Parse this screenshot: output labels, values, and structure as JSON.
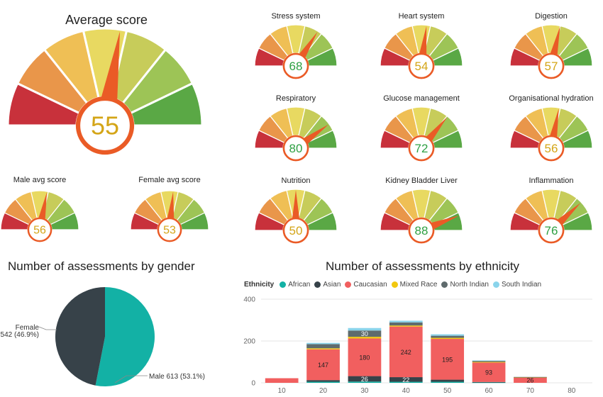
{
  "colors": {
    "red": "#c8313b",
    "orange": "#e9964a",
    "yellow_orange": "#efbf55",
    "yellow": "#e8d961",
    "yellow_green": "#c7cc5a",
    "light_green": "#9dc456",
    "green": "#5aa845",
    "needle": "#ea5b26",
    "score_yellow": "#d4a517",
    "score_green": "#2ea043"
  },
  "main_gauge": {
    "title": "Average score",
    "value": "55",
    "value_color": "#d4a517"
  },
  "small_gauges": [
    {
      "title": "Male avg score",
      "value": "56",
      "value_color": "#d4a517"
    },
    {
      "title": "Female avg score",
      "value": "53",
      "value_color": "#d4a517"
    }
  ],
  "system_gauges": [
    {
      "title": "Stress system",
      "value": "68",
      "value_color": "#2ea043"
    },
    {
      "title": "Heart system",
      "value": "54",
      "value_color": "#d4a517"
    },
    {
      "title": "Digestion",
      "value": "57",
      "value_color": "#d4a517"
    },
    {
      "title": "Respiratory",
      "value": "80",
      "value_color": "#2ea043"
    },
    {
      "title": "Glucose management",
      "value": "72",
      "value_color": "#2ea043"
    },
    {
      "title": "Organisational hydration",
      "value": "56",
      "value_color": "#d4a517"
    },
    {
      "title": "Nutrition",
      "value": "50",
      "value_color": "#d4a517"
    },
    {
      "title": "Kidney Bladder Liver",
      "value": "88",
      "value_color": "#2ea043"
    },
    {
      "title": "Inflammation",
      "value": "76",
      "value_color": "#2ea043"
    }
  ],
  "gender_chart": {
    "title": "Number of assessments by gender"
  },
  "ethnicity_chart": {
    "title": "Number of assessments by ethnicity"
  },
  "chart_data": [
    {
      "type": "pie",
      "title": "Number of assessments by gender",
      "slices": [
        {
          "label": "Male",
          "value": 613,
          "percent": "53.1%",
          "display": "Male 613 (53.1%)",
          "color": "#13b1a5"
        },
        {
          "label": "Female",
          "value": 542,
          "percent": "46.9%",
          "display_line1": "Female",
          "display_line2": "542 (46.9%)",
          "color": "#374249"
        }
      ]
    },
    {
      "type": "bar",
      "stacked": true,
      "title": "Number of assessments by ethnicity",
      "legend_title": "Ethnicity",
      "legend": [
        {
          "name": "African",
          "color": "#13b1a5"
        },
        {
          "name": "Asian",
          "color": "#374249"
        },
        {
          "name": "Caucasian",
          "color": "#f15f5f"
        },
        {
          "name": "Mixed Race",
          "color": "#f2c80f"
        },
        {
          "name": "North Indian",
          "color": "#5f6b6d"
        },
        {
          "name": "South Indian",
          "color": "#8ad4eb"
        }
      ],
      "categories": [
        "10",
        "20",
        "30",
        "40",
        "50",
        "60",
        "70",
        "80"
      ],
      "series": [
        {
          "name": "African",
          "values": [
            0,
            5,
            6,
            5,
            5,
            2,
            0,
            0
          ]
        },
        {
          "name": "Asian",
          "values": [
            0,
            8,
            26,
            22,
            10,
            2,
            0,
            0
          ]
        },
        {
          "name": "Caucasian",
          "values": [
            22,
            147,
            180,
            242,
            195,
            93,
            26,
            0
          ]
        },
        {
          "name": "Mixed Race",
          "values": [
            0,
            5,
            8,
            5,
            5,
            3,
            1,
            0
          ]
        },
        {
          "name": "North Indian",
          "values": [
            0,
            20,
            30,
            15,
            10,
            5,
            1,
            0
          ]
        },
        {
          "name": "South Indian",
          "values": [
            0,
            6,
            12,
            8,
            7,
            2,
            0,
            0
          ]
        }
      ],
      "data_labels": [
        {
          "category": "20",
          "series": "Caucasian",
          "text": "147"
        },
        {
          "category": "30",
          "series": "North Indian",
          "text": "30"
        },
        {
          "category": "30",
          "series": "Caucasian",
          "text": "180"
        },
        {
          "category": "30",
          "series": "Asian",
          "text": "26"
        },
        {
          "category": "40",
          "series": "Caucasian",
          "text": "242"
        },
        {
          "category": "40",
          "series": "Asian",
          "text": "22"
        },
        {
          "category": "50",
          "series": "Caucasian",
          "text": "195"
        },
        {
          "category": "60",
          "series": "Caucasian",
          "text": "93"
        },
        {
          "category": "70",
          "series": "Caucasian",
          "text": "26"
        }
      ],
      "yticks": [
        "0",
        "200",
        "400"
      ],
      "ylim": [
        0,
        400
      ],
      "grid": true
    }
  ]
}
